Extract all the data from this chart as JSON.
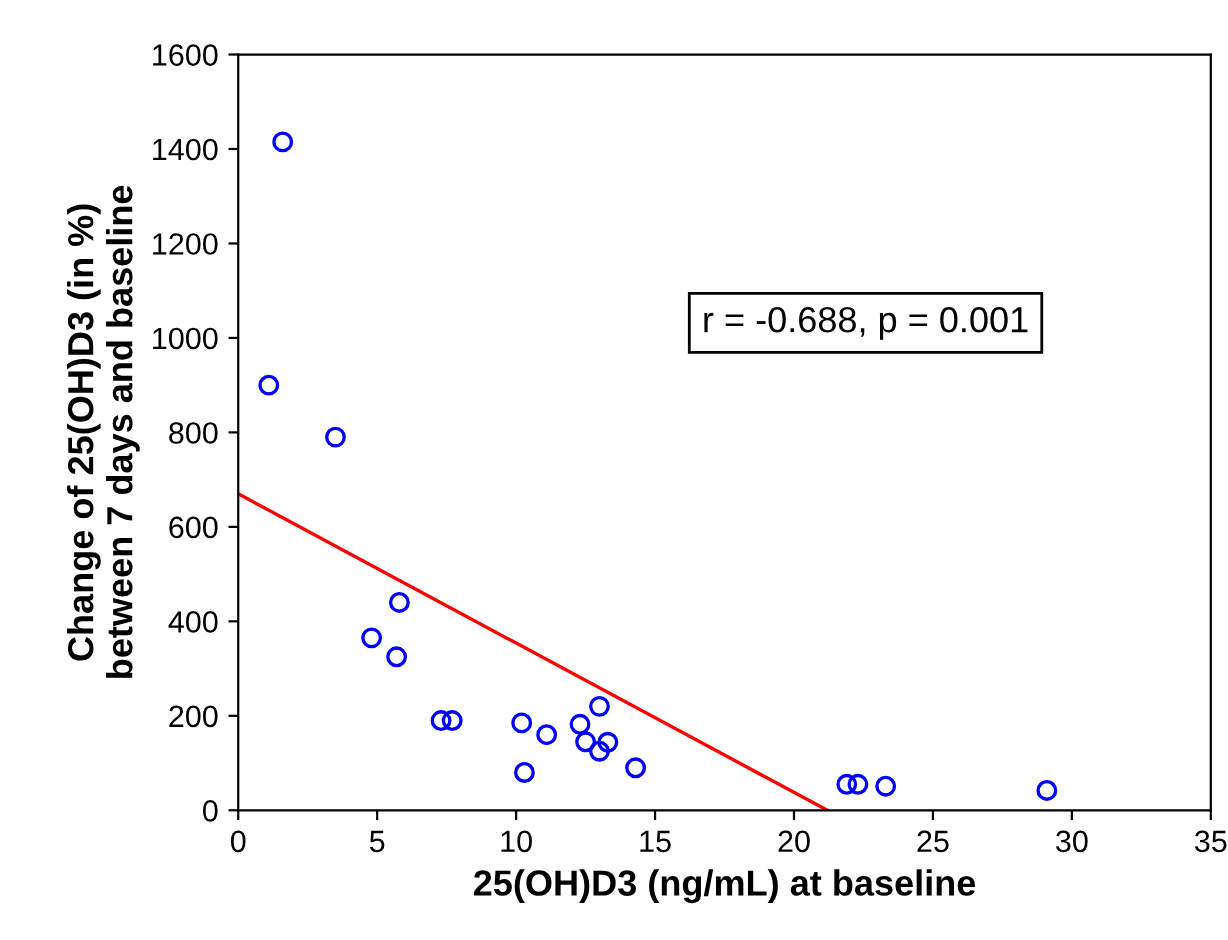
{
  "chart_data": {
    "type": "scatter",
    "xlabel": "25(OH)D3 (ng/mL) at baseline",
    "ylabel": "Change of 25(OH)D3 (in %)\nbetween 7 days and baseline",
    "xlim": [
      0,
      35
    ],
    "ylim": [
      0,
      1600
    ],
    "xticks": [
      0,
      5,
      10,
      15,
      20,
      25,
      30,
      35
    ],
    "yticks": [
      0,
      200,
      400,
      600,
      800,
      1000,
      1200,
      1400,
      1600
    ],
    "grid": false,
    "legend": false,
    "annotations": [
      "r = -0.688, p = 0.001"
    ],
    "series": [
      {
        "marker": "circle",
        "color": "#0000ff",
        "x": [
          1.6,
          1.1,
          3.5,
          4.8,
          5.7,
          5.8,
          7.3,
          7.7,
          10.2,
          10.3,
          11.1,
          12.3,
          12.5,
          13.0,
          13.0,
          13.3,
          14.3,
          21.9,
          22.3,
          23.3,
          29.1
        ],
        "values": [
          1415,
          900,
          790,
          365,
          325,
          440,
          190,
          190,
          185,
          80,
          160,
          182,
          145,
          220,
          125,
          144,
          90,
          55,
          55,
          51,
          42
        ]
      },
      {
        "type": "line",
        "color": "#ff0000",
        "x": [
          0,
          21.2
        ],
        "values": [
          670,
          0
        ]
      }
    ]
  }
}
